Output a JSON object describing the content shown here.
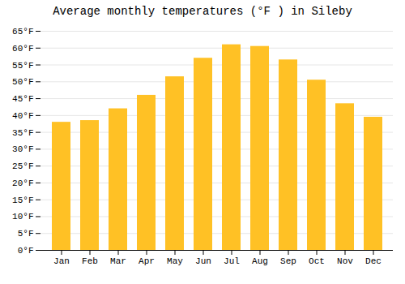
{
  "chart_data": {
    "type": "bar",
    "title": "Average monthly temperatures (°F ) in Sileby",
    "categories": [
      "Jan",
      "Feb",
      "Mar",
      "Apr",
      "May",
      "Jun",
      "Jul",
      "Aug",
      "Sep",
      "Oct",
      "Nov",
      "Dec"
    ],
    "values": [
      38,
      38.5,
      42,
      46,
      51.5,
      57,
      61,
      60.5,
      56.5,
      50.5,
      43.5,
      39.5
    ],
    "color": "#FFC125",
    "ylim": [
      0,
      65
    ],
    "yticks": [
      {
        "value": 0,
        "label": "0°F"
      },
      {
        "value": 5,
        "label": "5°F"
      },
      {
        "value": 10,
        "label": "10°F"
      },
      {
        "value": 15,
        "label": "15°F"
      },
      {
        "value": 20,
        "label": "20°F"
      },
      {
        "value": 25,
        "label": "25°F"
      },
      {
        "value": 30,
        "label": "30°F"
      },
      {
        "value": 35,
        "label": "35°F"
      },
      {
        "value": 40,
        "label": "40°F"
      },
      {
        "value": 45,
        "label": "45°F"
      },
      {
        "value": 50,
        "label": "50°F"
      },
      {
        "value": 55,
        "label": "55°F"
      },
      {
        "value": 60,
        "label": "60°F"
      },
      {
        "value": 65,
        "label": "65°F"
      }
    ],
    "grid": true
  }
}
